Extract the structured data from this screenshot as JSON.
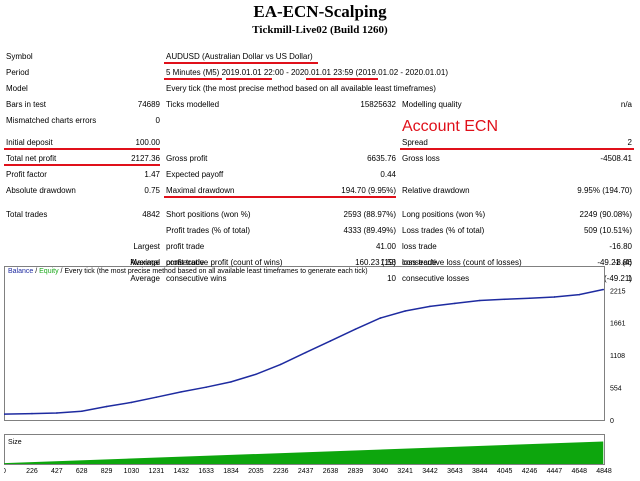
{
  "header": {
    "title": "EA-ECN-Scalping",
    "subtitle": "Tickmill-Live02 (Build 1260)"
  },
  "report": {
    "rows": [
      {
        "label": "Symbol",
        "value": "AUDUSD (Australian Dollar vs US Dollar)"
      },
      {
        "label": "Period",
        "value": "5 Minutes (M5) 2019.01.01 22:00 - 2020.01.01 23:59 (2019.01.02 - 2020.01.01)"
      },
      {
        "label": "Model",
        "value": "Every tick (the most precise method based on all available least timeframes)"
      }
    ],
    "bars_in_test": {
      "label": "Bars in test",
      "value": "74689"
    },
    "ticks_modelled": {
      "label": "Ticks modelled",
      "value": "15825632"
    },
    "modelling_quality": {
      "label": "Modelling quality",
      "value": "n/a"
    },
    "mismatched": {
      "label": "Mismatched charts errors",
      "value": "0"
    },
    "initial_deposit": {
      "label": "Initial deposit",
      "value": "100.00"
    },
    "spread": {
      "label": "Spread",
      "value": "2"
    },
    "total_net_profit": {
      "label": "Total net profit",
      "value": "2127.36"
    },
    "gross_profit": {
      "label": "Gross profit",
      "value": "6635.76"
    },
    "gross_loss": {
      "label": "Gross loss",
      "value": "-4508.41"
    },
    "profit_factor": {
      "label": "Profit factor",
      "value": "1.47"
    },
    "expected_payoff": {
      "label": "Expected payoff",
      "value": "0.44"
    },
    "absolute_drawdown": {
      "label": "Absolute drawdown",
      "value": "0.75"
    },
    "maximal_drawdown": {
      "label": "Maximal drawdown",
      "value": "194.70 (9.95%)"
    },
    "relative_drawdown": {
      "label": "Relative drawdown",
      "value": "9.95% (194.70)"
    },
    "total_trades": {
      "label": "Total trades",
      "value": "4842"
    },
    "short_positions": {
      "label": "Short positions (won %)",
      "value": "2593 (88.97%)"
    },
    "long_positions": {
      "label": "Long positions (won %)",
      "value": "2249 (90.08%)"
    },
    "profit_trades": {
      "label": "Profit trades (% of total)",
      "value": "4333 (89.49%)"
    },
    "loss_trades": {
      "label": "Loss trades (% of total)",
      "value": "509 (10.51%)"
    },
    "largest": {
      "label": "Largest",
      "profit_label": "profit trade",
      "profit_value": "41.00",
      "loss_label": "loss trade",
      "loss_value": "-16.80"
    },
    "average": {
      "label": "Average",
      "profit_label": "profit trade",
      "profit_value": "1.53",
      "loss_label": "loss trade",
      "loss_value": "-8.86"
    },
    "maximum": {
      "label": "Maximum",
      "wins_label": "consecutive wins (profit in money)",
      "wins_value": "63 (147.78)",
      "losses_label": "consecutive losses (loss in money)",
      "losses_value": "4 (-49.21)"
    },
    "maximal": {
      "label": "Maximal",
      "profit_label": "consecutive profit (count of wins)",
      "profit_value": "160.23 (19)",
      "loss_label": "consecutive loss (count of losses)",
      "loss_value": "-49.21 (4)"
    },
    "average_consec": {
      "label": "Average",
      "wins_label": "consecutive wins",
      "wins_value": "10",
      "losses_label": "consecutive losses",
      "losses_value": "1"
    }
  },
  "annotation": {
    "text": "Account ECN",
    "color": "#e0101a"
  },
  "chart_legend": {
    "balance": "Balance",
    "sep1": " / ",
    "equity": "Equity",
    "rest": " / Every tick (the most precise method based on all available least timeframes to generate each tick)"
  },
  "size_label": "Size",
  "colors": {
    "balance": "#1e2ba0",
    "equity": "#1aa81a",
    "size_bars": "#0da60d",
    "highlight": "#e0101a",
    "panel_border": "#808080"
  },
  "chart_data": {
    "type": "line",
    "series": [
      {
        "name": "Balance",
        "x": [
          0,
          226,
          427,
          628,
          829,
          1030,
          1231,
          1432,
          1633,
          1834,
          2035,
          2236,
          2437,
          2638,
          2839,
          3040,
          3241,
          3442,
          3643,
          3844,
          4045,
          4246,
          4447,
          4648,
          4842
        ],
        "values": [
          100,
          110,
          120,
          150,
          230,
          300,
          390,
          480,
          560,
          650,
          780,
          950,
          1150,
          1350,
          1550,
          1740,
          1860,
          1940,
          1990,
          2040,
          2060,
          2080,
          2100,
          2140,
          2227
        ]
      }
    ],
    "y_ticks": [
      "2215",
      "1661",
      "1108",
      "554",
      "0"
    ],
    "y_range": [
      0,
      2390
    ],
    "x_ticks": [
      "0",
      "226",
      "427",
      "628",
      "829",
      "1030",
      "1231",
      "1432",
      "1633",
      "1834",
      "2035",
      "2236",
      "2437",
      "2638",
      "2839",
      "3040",
      "3241",
      "3442",
      "3643",
      "3844",
      "4045",
      "4246",
      "4447",
      "4648",
      "4848"
    ],
    "x_range": [
      0,
      4848
    ],
    "size_series": {
      "x": [
        0,
        4842
      ],
      "values": [
        0.01,
        0.25
      ],
      "max": 0.3
    }
  }
}
